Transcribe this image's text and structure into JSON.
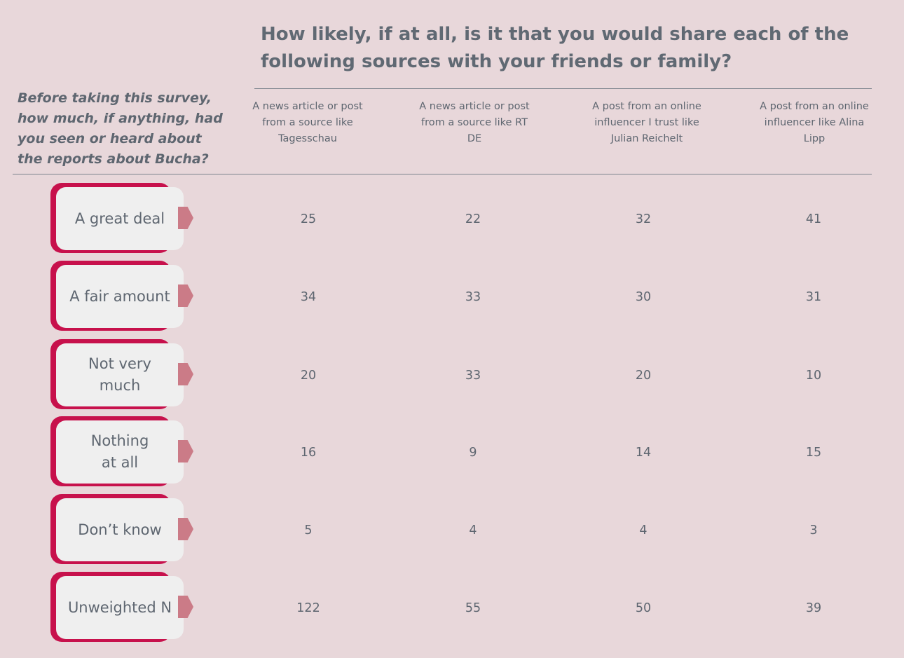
{
  "chart_data": {
    "type": "table",
    "title": "How likely, if at all, is it that you would share each of the following sources with your friends or family?",
    "row_header": "Before taking this survey, how much, if anything, had you seen or heard about the reports about Bucha?",
    "columns": [
      "A news article or post from a source like Tagesschau",
      "A news article or post from a source like RT DE",
      "A post from an online influencer I trust like Julian Reichelt",
      "A post from an online influencer like Alina Lipp"
    ],
    "rows": [
      {
        "label": "A great deal",
        "values": [
          25,
          22,
          32,
          41
        ]
      },
      {
        "label": "A fair amount",
        "values": [
          34,
          33,
          30,
          31
        ]
      },
      {
        "label": "Not very much",
        "values": [
          20,
          33,
          20,
          10
        ]
      },
      {
        "label": "Nothing at all",
        "values": [
          16,
          9,
          14,
          15
        ]
      },
      {
        "label": "Don’t know",
        "values": [
          5,
          4,
          4,
          3
        ]
      },
      {
        "label": "Unweighted N",
        "values": [
          122,
          55,
          50,
          39
        ]
      }
    ],
    "colors": {
      "background": "#e8d7da",
      "tab_accent": "#c7114c",
      "tab_fill": "#efefef",
      "arrow": "#cb7b87",
      "text": "#5e6670"
    }
  }
}
